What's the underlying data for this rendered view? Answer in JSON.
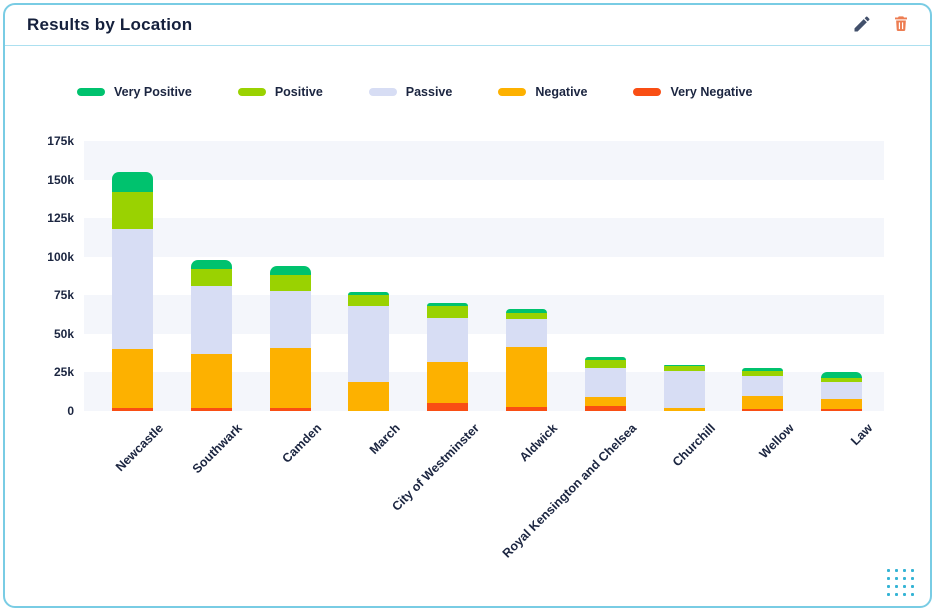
{
  "card": {
    "title": "Results by Location",
    "actions": {
      "edit_icon": "pencil-icon",
      "delete_icon": "trash-icon"
    },
    "drag_handle_icon": "drag-dots-icon"
  },
  "colors": {
    "card_border": "#79cce4",
    "header_divider": "#ace0f0",
    "title": "#15203c",
    "text": "#1b2540",
    "band": "#f4f6fb",
    "edit_icon": "#42506b",
    "delete_icon": "#ed7d52",
    "drag_dots": "#35b4d5"
  },
  "chart_data": {
    "type": "bar",
    "subtype": "stacked-vertical",
    "title": "Results by Location",
    "categories": [
      "Newcastle",
      "Southwark",
      "Camden",
      "March",
      "City of Westminster",
      "Aldwick",
      "Royal Kensington and Chelsea",
      "Churchill",
      "Wellow",
      "Law"
    ],
    "series": [
      {
        "name": "Very Positive",
        "color": "#00c26e",
        "values": [
          13000,
          6000,
          6000,
          2000,
          2000,
          2500,
          2000,
          1000,
          2000,
          3500
        ]
      },
      {
        "name": "Positive",
        "color": "#9ad201",
        "values": [
          24000,
          11000,
          10000,
          7000,
          8000,
          4000,
          5000,
          3000,
          3500,
          3000
        ]
      },
      {
        "name": "Passive",
        "color": "#d7ddf4",
        "values": [
          78000,
          44000,
          37000,
          49000,
          28000,
          18000,
          19000,
          24000,
          13000,
          10500
        ]
      },
      {
        "name": "Negative",
        "color": "#fdb100",
        "values": [
          38000,
          35000,
          39000,
          19000,
          27000,
          39000,
          6000,
          2000,
          8500,
          7000
        ]
      },
      {
        "name": "Very Negative",
        "color": "#f94e14",
        "values": [
          2000,
          2000,
          2000,
          0,
          5000,
          2500,
          3000,
          0,
          1000,
          1000
        ]
      }
    ],
    "stack_order_bottom_to_top": [
      "Very Negative",
      "Negative",
      "Passive",
      "Positive",
      "Very Positive"
    ],
    "totals": [
      155000,
      98000,
      94000,
      77000,
      70000,
      66000,
      35000,
      30000,
      28000,
      25000
    ],
    "ylim": [
      0,
      175000
    ],
    "ytick_labels": [
      "175k",
      "150k",
      "125k",
      "100k",
      "75k",
      "50k",
      "25k",
      "0"
    ],
    "ytick_values": [
      175000,
      150000,
      125000,
      100000,
      75000,
      50000,
      25000,
      0
    ],
    "xlabel": "",
    "ylabel": "",
    "xlabel_rotation_deg": -45,
    "legend_position": "top",
    "grid": "alternating-horizontal-bands"
  }
}
